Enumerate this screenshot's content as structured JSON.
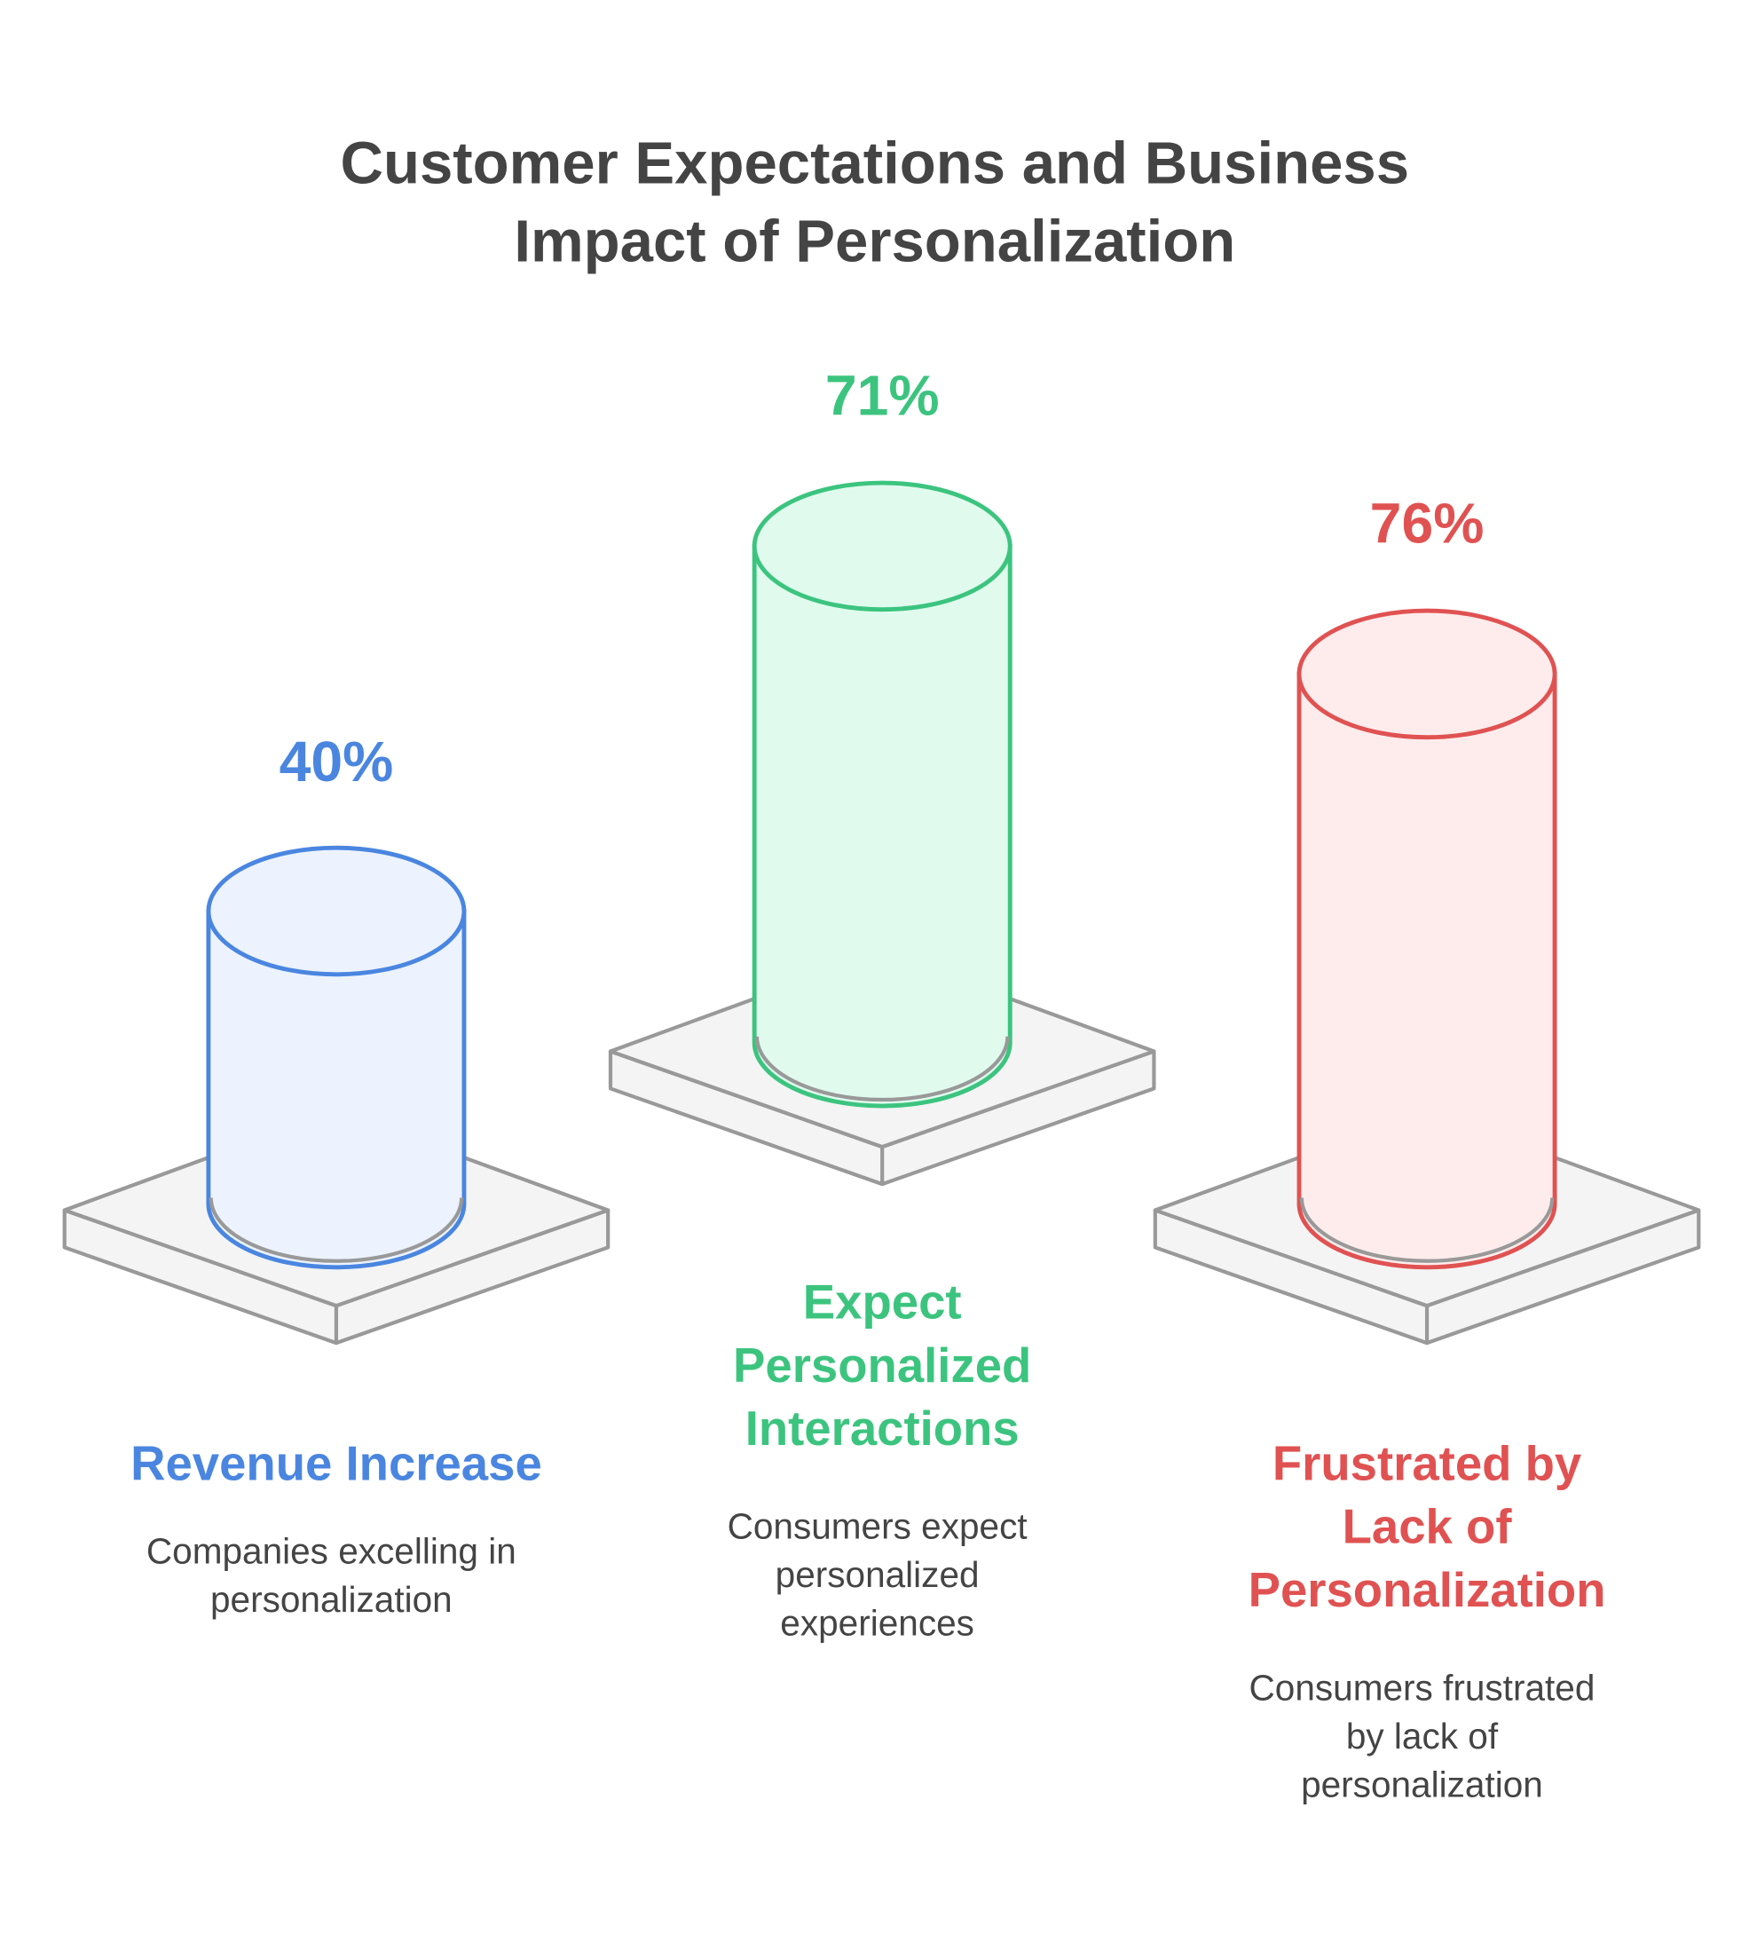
{
  "title": [
    "Customer Expectations and Business",
    "Impact of Personalization"
  ],
  "items": [
    {
      "value": "40%",
      "label": [
        "Revenue Increase"
      ],
      "description": [
        "Companies excelling in",
        "personalization"
      ],
      "color": "#4a86e0",
      "fill": "#ecf3fe"
    },
    {
      "value": "71%",
      "label": [
        "Expect",
        "Personalized",
        "Interactions"
      ],
      "description": [
        "Consumers expect",
        "personalized",
        "experiences"
      ],
      "color": "#3cc47f",
      "fill": "#e0fbee"
    },
    {
      "value": "76%",
      "label": [
        "Frustrated by",
        "Lack of",
        "Personalization"
      ],
      "description": [
        "Consumers frustrated",
        "by lack of",
        "personalization"
      ],
      "color": "#e05252",
      "fill": "#feecec"
    }
  ]
}
